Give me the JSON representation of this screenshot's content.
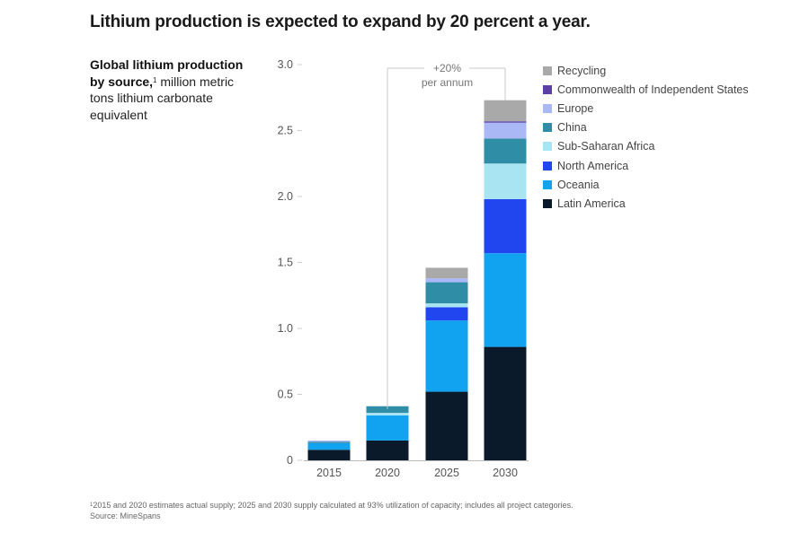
{
  "title": "Lithium production is expected to expand by 20 percent a year.",
  "subtitle": {
    "bold": "Global lithium production by source,",
    "footnote_marker": "1",
    "rest": "million metric tons lithium carbonate equivalent"
  },
  "footnote": {
    "marker": "1",
    "text": "2015 and 2020 estimates actual supply; 2025 and 2030 supply calculated at 93% utilization of capacity; includes all project categories.",
    "source": "Source: MineSpans"
  },
  "chart_data": {
    "type": "bar",
    "stacked": true,
    "title": "Lithium production is expected to expand by 20 percent a year.",
    "xlabel": "",
    "ylabel": "million metric tons lithium carbonate equivalent",
    "ylim": [
      0,
      3.0
    ],
    "yticks": [
      0,
      0.5,
      1.0,
      1.5,
      2.0,
      2.5,
      3.0
    ],
    "ytick_labels": [
      "0",
      "0.5",
      "1.0",
      "1.5",
      "2.0",
      "2.5",
      "3.0"
    ],
    "grid": false,
    "legend_position": "top-right",
    "categories": [
      "2015",
      "2020",
      "2025",
      "2030"
    ],
    "series": [
      {
        "name": "Latin America",
        "color": "#0b1a2b",
        "values": [
          0.08,
          0.15,
          0.52,
          0.86
        ]
      },
      {
        "name": "Oceania",
        "color": "#12a3f0",
        "values": [
          0.05,
          0.19,
          0.54,
          0.71
        ]
      },
      {
        "name": "North America",
        "color": "#2146f0",
        "values": [
          0.0,
          0.0,
          0.1,
          0.41
        ]
      },
      {
        "name": "Sub-Saharan Africa",
        "color": "#a8e4f2",
        "values": [
          0.0,
          0.02,
          0.03,
          0.27
        ]
      },
      {
        "name": "China",
        "color": "#2f8ea5",
        "values": [
          0.01,
          0.05,
          0.16,
          0.19
        ]
      },
      {
        "name": "Europe",
        "color": "#aab8f5",
        "values": [
          0.01,
          0.0,
          0.03,
          0.12
        ]
      },
      {
        "name": "Commonwealth of Independent States",
        "color": "#5b3ea8",
        "values": [
          0.0,
          0.0,
          0.0,
          0.01
        ]
      },
      {
        "name": "Recycling",
        "color": "#a9a9a9",
        "values": [
          0.0,
          0.0,
          0.08,
          0.16
        ]
      }
    ],
    "annotations": [
      {
        "text_line1": "+20%",
        "text_line2": "per annum",
        "from": "2020",
        "to": "2030"
      }
    ]
  },
  "legend_order": [
    "Recycling",
    "Commonwealth of Independent States",
    "Europe",
    "China",
    "Sub-Saharan Africa",
    "North America",
    "Oceania",
    "Latin America"
  ]
}
